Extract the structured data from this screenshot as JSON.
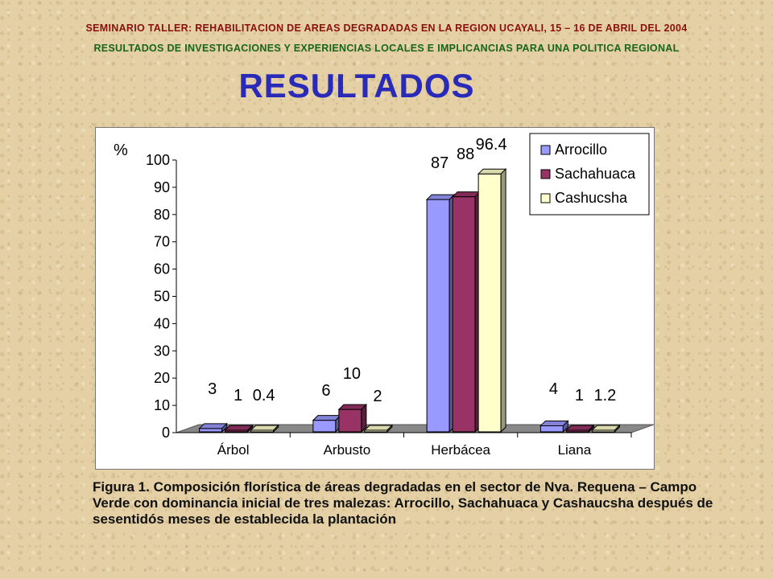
{
  "header": {
    "line1": "SEMINARIO TALLER: REHABILITACION DE AREAS DEGRADADAS EN LA REGION UCAYALI, 15 – 16 DE ABRIL DEL 2004",
    "line2": "RESULTADOS DE INVESTIGACIONES Y EXPERIENCIAS LOCALES E IMPLICANCIAS PARA UNA POLITICA REGIONAL"
  },
  "title": "RESULTADOS",
  "caption": "Figura 1. Composición florística de áreas degradadas en el sector de Nva. Requena – Campo Verde con dominancia inicial de tres malezas: Arrocillo, Sachahuaca y Cashaucsha después de sesentidós meses de establecida la plantación",
  "chart_data": {
    "type": "bar",
    "ylabel": "%",
    "ylim": [
      0,
      100
    ],
    "yticks": [
      0,
      10,
      20,
      30,
      40,
      50,
      60,
      70,
      80,
      90,
      100
    ],
    "categories": [
      "Árbol",
      "Arbusto",
      "Herbácea",
      "Liana"
    ],
    "series": [
      {
        "name": "Arrocillo",
        "values": [
          3,
          6,
          87,
          4
        ],
        "labels": [
          "3",
          "6",
          "87",
          "4"
        ],
        "color": "#9999ff"
      },
      {
        "name": "Sachahuaca",
        "values": [
          1,
          10,
          88,
          1
        ],
        "labels": [
          "1",
          "10",
          "88",
          "1"
        ],
        "color": "#993366"
      },
      {
        "name": "Cashucsha",
        "values": [
          0.4,
          2,
          96.4,
          1.2
        ],
        "labels": [
          "0.4",
          "2",
          "96.4",
          "1.2"
        ],
        "color": "#ffffcc"
      }
    ],
    "legend_position": "top-right",
    "grid": false,
    "three_d": true
  }
}
